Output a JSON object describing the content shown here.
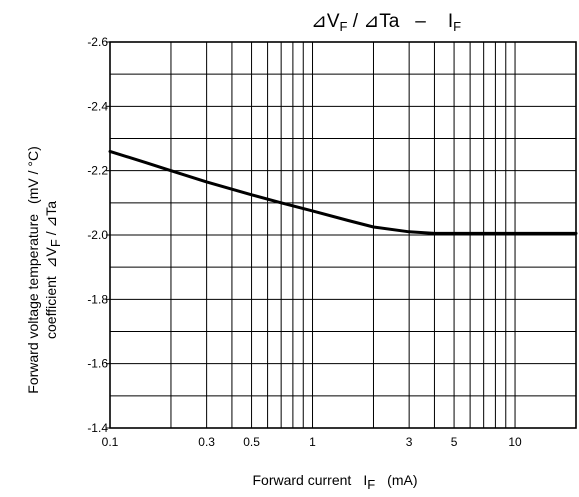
{
  "chart_data": {
    "type": "line",
    "title": {
      "symbol": "⊿",
      "v": "V",
      "v_sub": "F",
      "slash": " / ",
      "ta": "Ta",
      "dash": "–",
      "i": "I",
      "i_sub": "F"
    },
    "xlabel": {
      "prefix": "Forward   current",
      "i": "I",
      "i_sub": "F",
      "unit": "(mA)"
    },
    "ylabel": {
      "line1_a": "Forward    voltage    temperature",
      "line1_b": "(mV / °C)",
      "line2_a": "coefficient",
      "line2_sym": "⊿V",
      "line2_sub": "F",
      "line2_b": " / ⊿Ta"
    },
    "x_scale": "log",
    "xlim": [
      0.1,
      20
    ],
    "x_ticks": [
      {
        "value": 0.1,
        "label": "0.1"
      },
      {
        "value": 0.3,
        "label": "0.3"
      },
      {
        "value": 0.5,
        "label": "0.5"
      },
      {
        "value": 1,
        "label": "1"
      },
      {
        "value": 3,
        "label": "3"
      },
      {
        "value": 5,
        "label": "5"
      },
      {
        "value": 10,
        "label": "10"
      }
    ],
    "ylim": [
      -1.4,
      -2.6
    ],
    "y_ticks": [
      {
        "value": -2.6,
        "label": "-2.6"
      },
      {
        "value": -2.4,
        "label": "-2.4"
      },
      {
        "value": -2.2,
        "label": "-2.2"
      },
      {
        "value": -2.0,
        "label": "-2.0"
      },
      {
        "value": -1.8,
        "label": "-1.8"
      },
      {
        "value": -1.6,
        "label": "-1.6"
      },
      {
        "value": -1.4,
        "label": "-1.4"
      }
    ],
    "y_minor_step": 0.1,
    "grid": true,
    "series": [
      {
        "color": "#000000",
        "x": [
          0.1,
          0.15,
          0.2,
          0.3,
          0.5,
          0.7,
          1,
          1.5,
          2,
          3,
          4,
          5,
          7,
          10,
          15,
          20
        ],
        "y": [
          -2.26,
          -2.225,
          -2.2,
          -2.165,
          -2.125,
          -2.1,
          -2.075,
          -2.045,
          -2.025,
          -2.01,
          -2.005,
          -2.005,
          -2.005,
          -2.005,
          -2.005,
          -2.005
        ]
      }
    ]
  }
}
